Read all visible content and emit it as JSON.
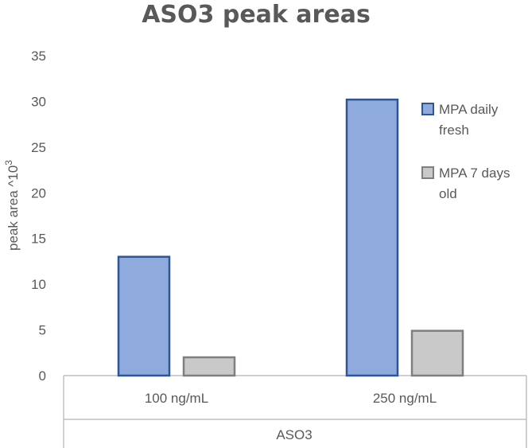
{
  "chart_data": {
    "type": "bar",
    "title": "ASO3 peak areas",
    "ylabel": "peak area ^10",
    "ylabel_superscript": "3",
    "xlabel": "ASO3",
    "categories": [
      "100 ng/mL",
      "250 ng/mL"
    ],
    "series": [
      {
        "name": "MPA daily fresh",
        "name_lines": [
          "MPA daily",
          "fresh"
        ],
        "values": [
          13,
          30.2
        ],
        "color": "#8FAADC",
        "stroke": "#2F5597"
      },
      {
        "name": "MPA 7 days old",
        "name_lines": [
          "MPA 7 days",
          "old"
        ],
        "values": [
          2,
          4.9
        ],
        "color": "#C9C9C9",
        "stroke": "#7F7F7F"
      }
    ],
    "ylim": [
      0,
      35
    ],
    "yticks": [
      "0",
      "5",
      "10",
      "15",
      "20",
      "25",
      "30",
      "35"
    ],
    "grid": false,
    "legend": "right"
  }
}
